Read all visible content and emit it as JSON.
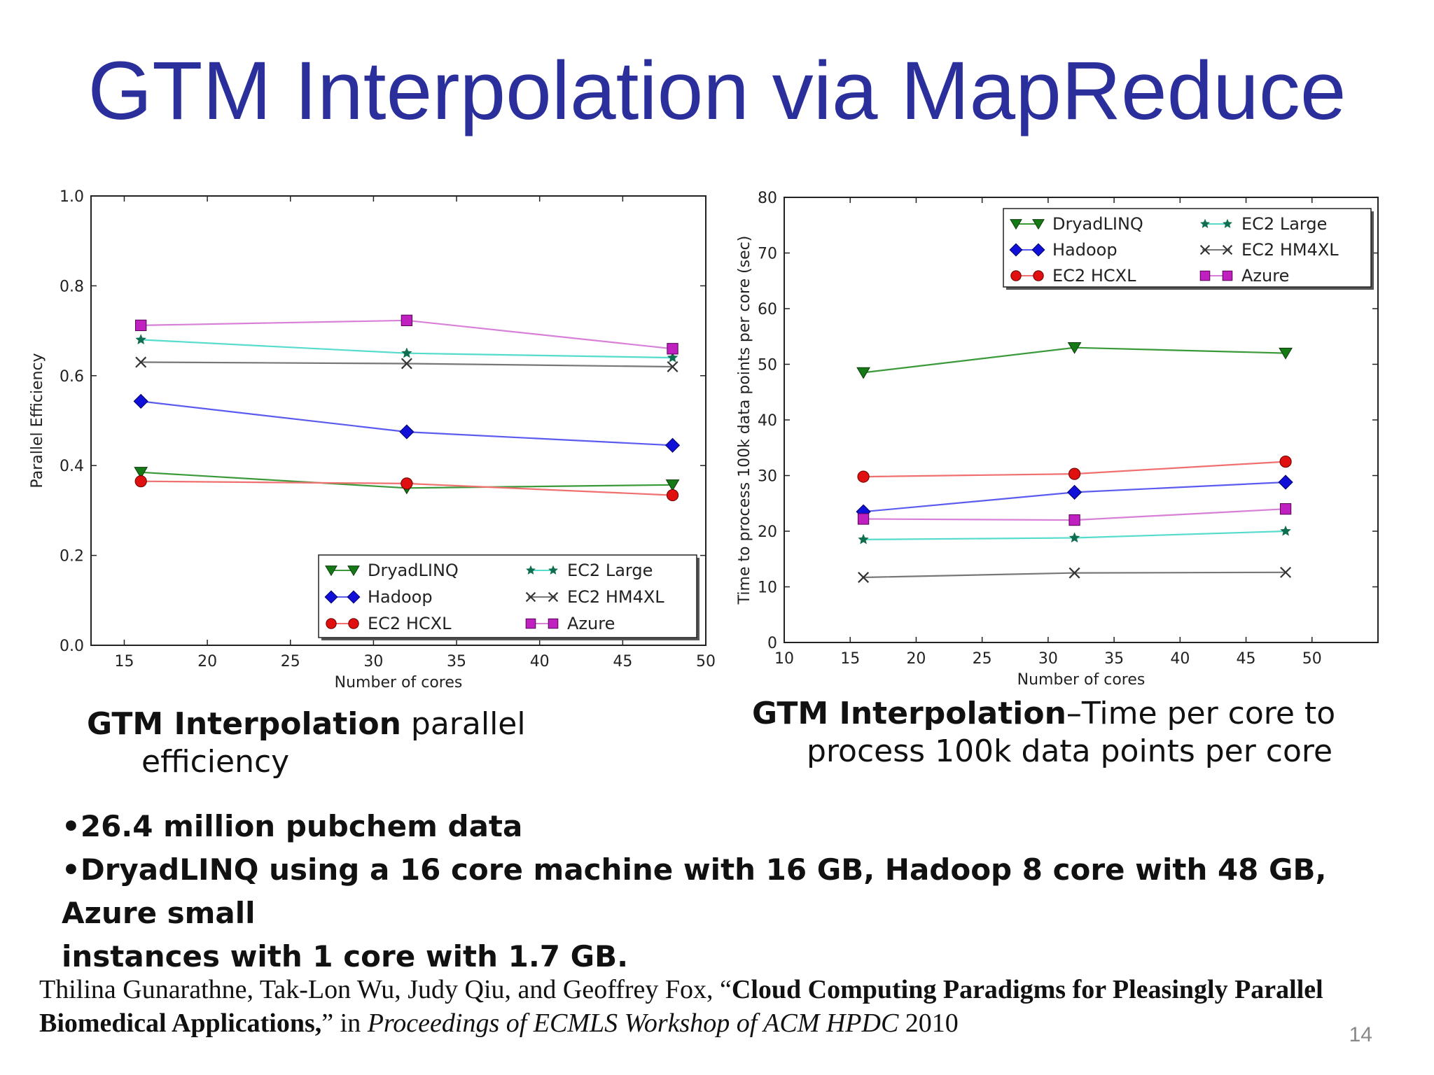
{
  "slide": {
    "title": "GTM Interpolation via MapReduce",
    "page_number": "14"
  },
  "captions": {
    "left": {
      "bold": "GTM Interpolation",
      "rest_line1": " parallel",
      "rest_line2": "efficiency"
    },
    "right": {
      "bold": "GTM Interpolation",
      "rest_line1": "–Time per core to",
      "rest_line2": "process 100k data points per core"
    }
  },
  "bullets": [
    "•26.4 million pubchem data",
    "•DryadLINQ using a 16 core machine with 16 GB, Hadoop 8 core with 48 GB, Azure small",
    "instances with 1 core  with 1.7 GB."
  ],
  "citation": {
    "authors": "Thilina Gunarathne, Tak-Lon Wu, Judy Qiu, and Geoffrey Fox, “",
    "paper_title": "Cloud Computing Paradigms for Pleasingly Parallel Biomedical Applications,",
    "in_text": "” in ",
    "venue": "Proceedings of ECMLS Workshop of ACM HPDC",
    "year": " 2010"
  },
  "series_styles": [
    {
      "name": "DryadLINQ",
      "line": "#3a9a3a",
      "fill": "#157a15",
      "marker": "triangle-down"
    },
    {
      "name": "Hadoop",
      "line": "#5b5bf0",
      "fill": "#1010d8",
      "marker": "diamond"
    },
    {
      "name": "EC2 HCXL",
      "line": "#f07070",
      "fill": "#e01010",
      "marker": "circle"
    },
    {
      "name": "EC2 Large",
      "line": "#55dccc",
      "fill": "#0f6e4e",
      "marker": "star"
    },
    {
      "name": "EC2 HM4XL",
      "line": "#777777",
      "fill": "#333333",
      "marker": "x"
    },
    {
      "name": "Azure",
      "line": "#d880d8",
      "fill": "#c020c0",
      "marker": "square"
    }
  ],
  "chart_data": [
    {
      "type": "line",
      "xlabel": "Number of cores",
      "ylabel": "Parallel Efficiency",
      "xlim": [
        13,
        50
      ],
      "ylim": [
        0.0,
        1.0
      ],
      "xticks": [
        15,
        20,
        25,
        30,
        35,
        40,
        45,
        50
      ],
      "yticks": [
        0.0,
        0.2,
        0.4,
        0.6,
        0.8,
        1.0
      ],
      "ytick_labels": [
        "0.0",
        "0.2",
        "0.4",
        "0.6",
        "0.8",
        "1.0"
      ],
      "legend_position": "lower-right",
      "x": [
        16,
        32,
        48
      ],
      "series": [
        {
          "name": "DryadLINQ",
          "values": [
            0.385,
            0.35,
            0.357
          ]
        },
        {
          "name": "Hadoop",
          "values": [
            0.543,
            0.475,
            0.445
          ]
        },
        {
          "name": "EC2 HCXL",
          "values": [
            0.365,
            0.36,
            0.334
          ]
        },
        {
          "name": "EC2 Large",
          "values": [
            0.68,
            0.65,
            0.64
          ]
        },
        {
          "name": "EC2 HM4XL",
          "values": [
            0.63,
            0.627,
            0.62
          ]
        },
        {
          "name": "Azure",
          "values": [
            0.712,
            0.723,
            0.66
          ]
        }
      ]
    },
    {
      "type": "line",
      "xlabel": "Number of cores",
      "ylabel": "Time to process 100k data points per core (sec)",
      "xlim": [
        10,
        55
      ],
      "ylim": [
        0,
        80
      ],
      "xticks": [
        10,
        15,
        20,
        25,
        30,
        35,
        40,
        45,
        50
      ],
      "yticks": [
        0,
        10,
        20,
        30,
        40,
        50,
        60,
        70,
        80
      ],
      "ytick_labels": [
        "0",
        "10",
        "20",
        "30",
        "40",
        "50",
        "60",
        "70",
        "80"
      ],
      "legend_position": "upper-right",
      "x": [
        16,
        32,
        48
      ],
      "series": [
        {
          "name": "DryadLINQ",
          "values": [
            48.5,
            53.0,
            52.0
          ]
        },
        {
          "name": "Hadoop",
          "values": [
            23.5,
            27.0,
            28.8
          ]
        },
        {
          "name": "EC2 HCXL",
          "values": [
            29.8,
            30.3,
            32.5
          ]
        },
        {
          "name": "EC2 Large",
          "values": [
            18.5,
            18.8,
            20.0
          ]
        },
        {
          "name": "EC2 HM4XL",
          "values": [
            11.7,
            12.5,
            12.6
          ]
        },
        {
          "name": "Azure",
          "values": [
            22.2,
            22.0,
            24.0
          ]
        }
      ]
    }
  ]
}
